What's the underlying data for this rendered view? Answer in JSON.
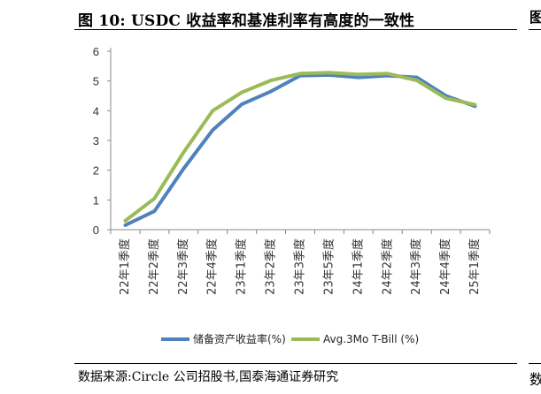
{
  "figure": {
    "title": "图 10:  USDC 收益率和基准利率有高度的一致性",
    "source": "数据来源:Circle 公司招股书,国泰海通证券研究",
    "edge_top_char": "图",
    "edge_bottom_char": "数"
  },
  "chart_data": {
    "type": "line",
    "categories": [
      "22年1季度",
      "22年2季度",
      "22年3季度",
      "22年4季度",
      "23年1季度",
      "23年2季度",
      "23年3季度",
      "23年5季度",
      "24年1季度",
      "24年2季度",
      "24年3季度",
      "24年4季度",
      "25年1季度"
    ],
    "series": [
      {
        "name": "储备资产收益率(%)",
        "color": "#4f81bd",
        "values": [
          0.15,
          0.62,
          2.05,
          3.35,
          4.22,
          4.65,
          5.18,
          5.2,
          5.12,
          5.18,
          5.12,
          4.5,
          4.15
        ]
      },
      {
        "name": "Avg.3Mo T-Bill (%)",
        "color": "#9bbb59",
        "values": [
          0.3,
          1.05,
          2.6,
          4.0,
          4.62,
          5.02,
          5.25,
          5.28,
          5.22,
          5.25,
          5.02,
          4.42,
          4.2
        ]
      }
    ],
    "ylim": [
      0,
      6
    ],
    "yticks": [
      0,
      1,
      2,
      3,
      4,
      5,
      6
    ],
    "grid": false,
    "legend_position": "bottom"
  }
}
